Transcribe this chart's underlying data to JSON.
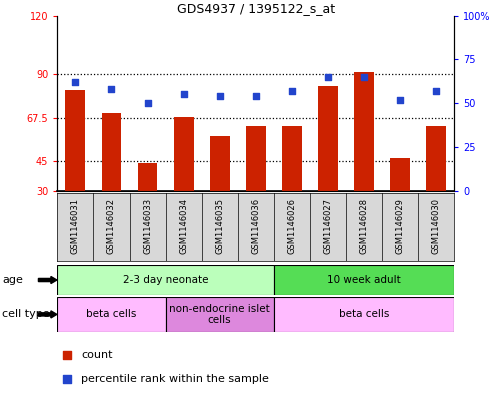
{
  "title": "GDS4937 / 1395122_s_at",
  "samples": [
    "GSM1146031",
    "GSM1146032",
    "GSM1146033",
    "GSM1146034",
    "GSM1146035",
    "GSM1146036",
    "GSM1146026",
    "GSM1146027",
    "GSM1146028",
    "GSM1146029",
    "GSM1146030"
  ],
  "bar_values": [
    82,
    70,
    44,
    68,
    58,
    63,
    63,
    84,
    91,
    47,
    63
  ],
  "dot_values": [
    62,
    58,
    50,
    55,
    54,
    54,
    57,
    65,
    65,
    52,
    57
  ],
  "ylim_left": [
    30,
    120
  ],
  "ylim_right": [
    0,
    100
  ],
  "yticks_left": [
    30,
    45,
    67.5,
    90,
    120
  ],
  "yticks_right": [
    0,
    25,
    50,
    75,
    100
  ],
  "ytick_labels_right": [
    "0",
    "25",
    "50",
    "75",
    "100%"
  ],
  "bar_color": "#cc2200",
  "dot_color": "#2244cc",
  "grid_values": [
    45,
    67.5,
    90
  ],
  "age_groups": [
    {
      "label": "2-3 day neonate",
      "start": 0,
      "end": 6,
      "color": "#bbffbb"
    },
    {
      "label": "10 week adult",
      "start": 6,
      "end": 11,
      "color": "#55dd55"
    }
  ],
  "cell_type_groups": [
    {
      "label": "beta cells",
      "start": 0,
      "end": 3,
      "color": "#ffbbff"
    },
    {
      "label": "non-endocrine islet\ncells",
      "start": 3,
      "end": 6,
      "color": "#dd88dd"
    },
    {
      "label": "beta cells",
      "start": 6,
      "end": 11,
      "color": "#ffbbff"
    }
  ],
  "legend_bar_label": "count",
  "legend_dot_label": "percentile rank within the sample",
  "row_label_age": "age",
  "row_label_cell": "cell type"
}
